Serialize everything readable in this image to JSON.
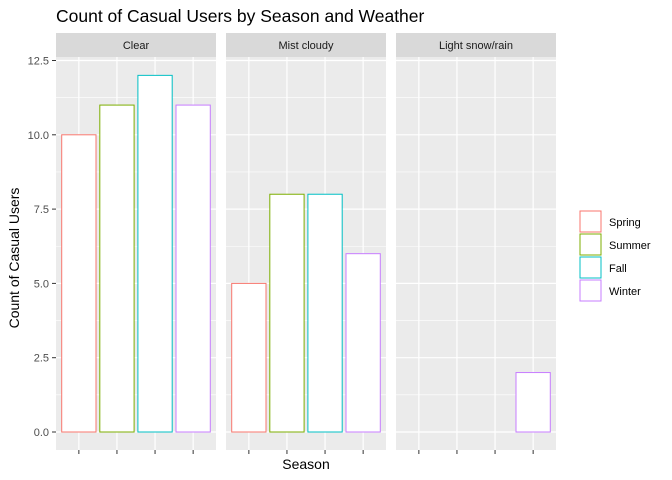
{
  "chart_data": {
    "type": "bar",
    "title": "Count of Casual Users by Season and Weather",
    "xlabel": "Season",
    "ylabel": "Count of Casual Users",
    "ylim": [
      0,
      12.5
    ],
    "yticks": [
      "0.0",
      "2.5",
      "5.0",
      "7.5",
      "10.0",
      "12.5"
    ],
    "ytick_values": [
      0,
      2.5,
      5,
      7.5,
      10,
      12.5
    ],
    "categories": [
      "Spring",
      "Summer",
      "Fall",
      "Winter"
    ],
    "category_colors": [
      "#F8766D",
      "#7CAE00",
      "#00BFC4",
      "#C77CFF"
    ],
    "facets": [
      {
        "label": "Clear",
        "values": [
          10,
          11,
          12,
          11
        ]
      },
      {
        "label": "Mist cloudy",
        "values": [
          5,
          8,
          8,
          6
        ]
      },
      {
        "label": "Light snow/rain",
        "values": [
          null,
          null,
          null,
          2
        ]
      }
    ],
    "legend": {
      "position": "right",
      "entries": [
        "Spring",
        "Summer",
        "Fall",
        "Winter"
      ]
    },
    "grid": true,
    "x_tick_labels_shown": false
  },
  "colors": {
    "panel_background": "#EBEBEB",
    "strip_background": "#D9D9D9",
    "grid_major": "#FFFFFF",
    "bar_fill": "#FFFFFF"
  }
}
